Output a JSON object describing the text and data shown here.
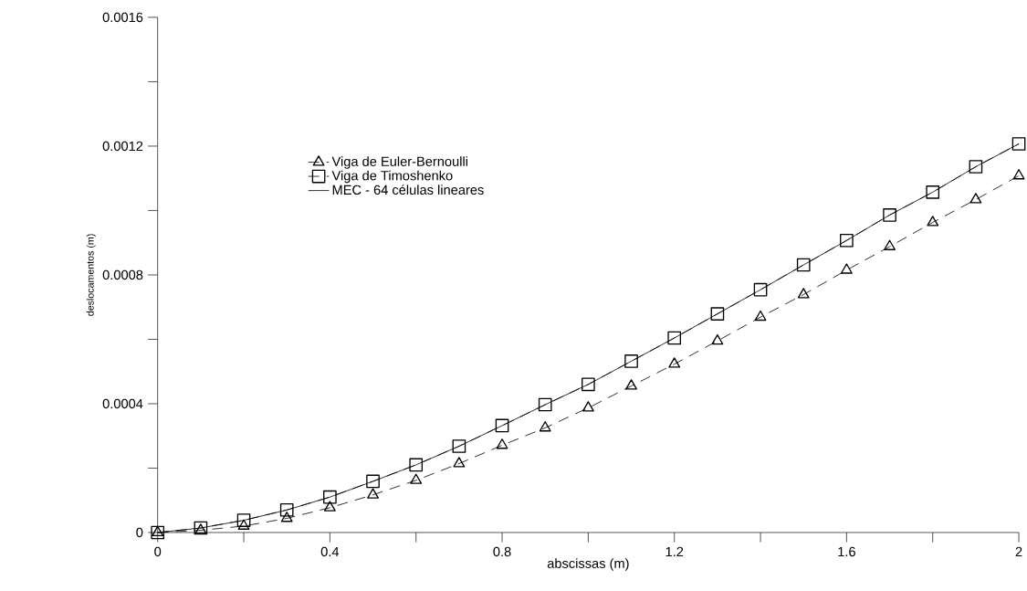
{
  "chart_data": {
    "type": "line",
    "xlabel": "abscissas (m)",
    "ylabel": "deslocamentos (m)",
    "x": [
      0,
      0.1,
      0.2,
      0.3,
      0.4,
      0.5,
      0.6,
      0.7,
      0.8,
      0.9,
      1.0,
      1.1,
      1.2,
      1.3,
      1.4,
      1.5,
      1.6,
      1.7,
      1.8,
      1.9,
      2.0
    ],
    "series": [
      {
        "name": "Viga de Euler-Bernoulli",
        "color": "#000000",
        "marker": "triangle",
        "line_style": "dashed",
        "values": [
          0,
          7e-06,
          2e-05,
          4.4e-05,
          7.7e-05,
          0.000117,
          0.000162,
          0.000214,
          0.000271,
          0.000325,
          0.000387,
          0.000455,
          0.000523,
          0.000595,
          0.000669,
          0.000739,
          0.000815,
          0.000888,
          0.000963,
          0.001034,
          0.001108
        ]
      },
      {
        "name": "Viga de Timoshenko",
        "color": "#000000",
        "marker": "square",
        "line_style": "dashed",
        "values": [
          0,
          1.4e-05,
          3.8e-05,
          7e-05,
          0.00011,
          0.000159,
          0.00021,
          0.000268,
          0.000332,
          0.000397,
          0.00046,
          0.000532,
          0.000604,
          0.000679,
          0.000754,
          0.000831,
          0.000907,
          0.000986,
          0.001057,
          0.001136,
          0.001207
        ]
      },
      {
        "name": "MEC - 64 células lineares",
        "color": "#000000",
        "marker": "none",
        "line_style": "solid",
        "values": [
          0,
          1.4e-05,
          3.8e-05,
          7e-05,
          0.00011,
          0.000159,
          0.00021,
          0.000268,
          0.000332,
          0.000397,
          0.00046,
          0.000532,
          0.000604,
          0.000679,
          0.000754,
          0.000831,
          0.000907,
          0.000986,
          0.001057,
          0.001136,
          0.001207
        ]
      }
    ],
    "xlim": [
      0,
      2
    ],
    "ylim": [
      0,
      0.0016
    ],
    "xticks": [
      0,
      {
        "value": 0.2,
        "label": null
      },
      0.4,
      {
        "value": 0.6,
        "label": null
      },
      0.8,
      {
        "value": 1.0,
        "label": null
      },
      1.2,
      {
        "value": 1.4,
        "label": null
      },
      1.6,
      {
        "value": 1.8,
        "label": null
      },
      2
    ],
    "yticks": [
      0,
      {
        "value": 0.0002,
        "label": null
      },
      0.0004,
      {
        "value": 0.0006,
        "label": null
      },
      0.0008,
      {
        "value": 0.001,
        "label": null
      },
      0.0012,
      {
        "value": 0.0014,
        "label": null
      },
      0.0016
    ],
    "grid": false,
    "legend": "top left"
  }
}
